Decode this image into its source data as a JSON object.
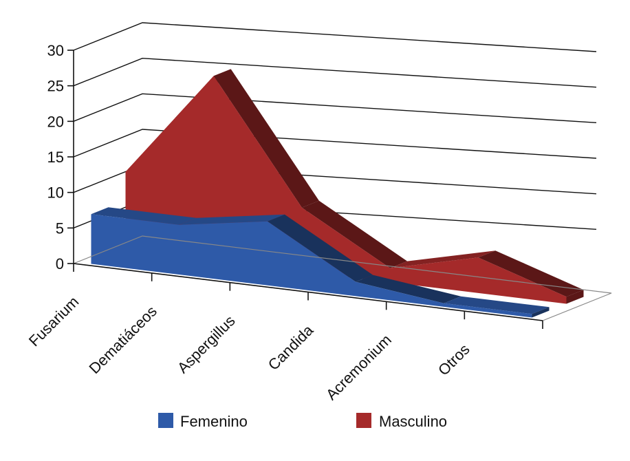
{
  "chart_data": {
    "type": "area",
    "style": "3d",
    "categories": [
      "Fusarium",
      "Dematiáceos",
      "Aspergillus",
      "Candida",
      "Acremonium",
      "Otros"
    ],
    "series": [
      {
        "name": "Femenino",
        "values": [
          7,
          7,
          9,
          2,
          0.5,
          0.5
        ],
        "color": "#2E5AA8"
      },
      {
        "name": "Masculino",
        "values": [
          11,
          26,
          9,
          2,
          5,
          1
        ],
        "color": "#A52A2A"
      }
    ],
    "yticks": [
      0,
      5,
      10,
      15,
      20,
      25,
      30
    ],
    "ylim": [
      0,
      30
    ],
    "grid": true,
    "legend": "bottom"
  }
}
